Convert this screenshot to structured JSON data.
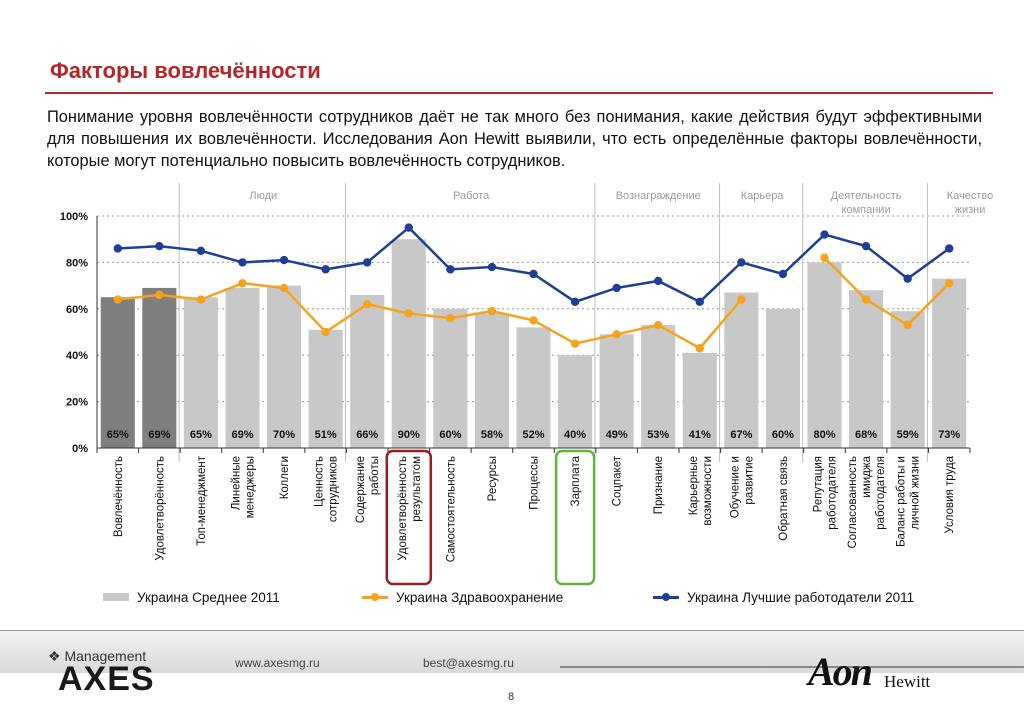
{
  "slide": {
    "title": "Факторы вовлечённости",
    "intro": "Понимание уровня вовлечённости сотрудников даёт не так много без понимания, какие действия будут эффективными для повышения их вовлечённости. Исследования Aon Hewitt выявили, что есть определённые факторы вовлечённости, которые могут потенциально повысить вовлечённость сотрудников.",
    "page_number": "8"
  },
  "footer": {
    "logo_small": "Management",
    "logo_big": "AXES",
    "website": "www.axesmg.ru",
    "email": "best@axesmg.ru",
    "aon": "Aon",
    "hewitt": "Hewitt"
  },
  "colors": {
    "bar_default": "#c8c8c8",
    "bar_dark": "#7f7f7f",
    "line_health": "#f5a21d",
    "line_best": "#1f3f96",
    "highlight_red": "#9b1b1f",
    "highlight_green": "#5db63b",
    "title_red": "#b3262a"
  },
  "chart_data": {
    "type": "bar",
    "ylim": [
      0,
      100
    ],
    "yticks": [
      "0%",
      "20%",
      "40%",
      "60%",
      "80%",
      "100%"
    ],
    "groups": [
      {
        "label": "Люди",
        "from": 2,
        "to": 5
      },
      {
        "label": "Работа",
        "from": 6,
        "to": 11
      },
      {
        "label": "Вознаграждение",
        "from": 12,
        "to": 14
      },
      {
        "label": "Карьера",
        "from": 15,
        "to": 16
      },
      {
        "label": "Деятельность компании",
        "from": 17,
        "to": 19
      },
      {
        "label": "Качество жизни",
        "from": 20,
        "to": 21
      }
    ],
    "categories": [
      "Вовлечённость",
      "Удовлетворённость",
      "Топ-менеджмент",
      "Линейные менеджеры",
      "Коллеги",
      "Ценность сотрудников",
      "Содержание работы",
      "Удовлетворённость результатом",
      "Самостоятельность",
      "Ресурсы",
      "Процессы",
      "Зарплата",
      "Соцпакет",
      "Признание",
      "Карьерные возможности",
      "Обучение и развитие",
      "Обратная связь",
      "Репутация работодателя",
      "Согласованность имиджа работодателя",
      "Баланс работы и личной жизни",
      "Условия труда"
    ],
    "series": [
      {
        "name": "Украина Среднее 2011",
        "kind": "bar",
        "values": [
          65,
          69,
          65,
          69,
          70,
          51,
          66,
          90,
          60,
          58,
          52,
          40,
          49,
          53,
          41,
          67,
          60,
          80,
          68,
          59,
          73
        ],
        "labels": [
          "65%",
          "69%",
          "65%",
          "69%",
          "70%",
          "51%",
          "66%",
          "90%",
          "60%",
          "58%",
          "52%",
          "40%",
          "49%",
          "53%",
          "41%",
          "67%",
          "60%",
          "80%",
          "68%",
          "59%",
          "73%"
        ]
      },
      {
        "name": "Украина Здравоохранение",
        "kind": "line",
        "values": [
          64,
          66,
          64,
          71,
          69,
          50,
          62,
          58,
          56,
          59,
          55,
          45,
          49,
          53,
          43,
          64,
          null,
          82,
          64,
          53,
          71
        ]
      },
      {
        "name": "Украина Лучшие работодатели 2011",
        "kind": "line",
        "values": [
          86,
          87,
          85,
          80,
          81,
          77,
          80,
          95,
          77,
          78,
          75,
          63,
          69,
          72,
          63,
          80,
          75,
          92,
          87,
          73,
          86
        ]
      }
    ],
    "dark_bars": [
      0,
      1
    ],
    "highlight_red": [
      7
    ],
    "highlight_green": [
      11
    ]
  }
}
